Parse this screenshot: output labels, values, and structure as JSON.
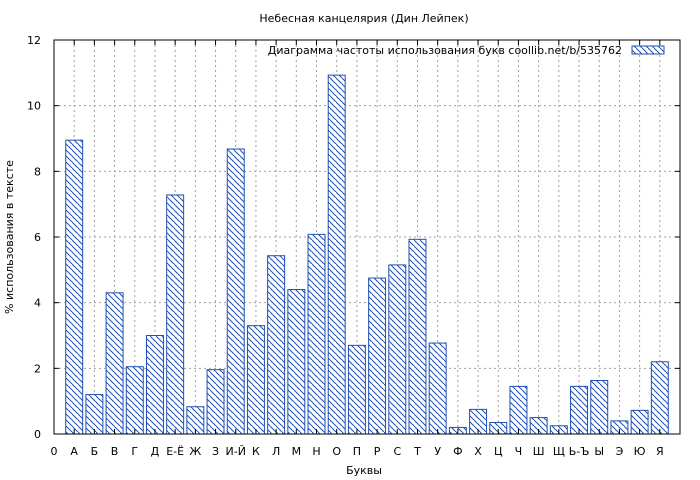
{
  "chart_data": {
    "type": "bar",
    "title": "Небесная канцелярия (Дин Лейпек)",
    "xlabel": "Буквы",
    "ylabel": "% использования в тексте",
    "legend": "Диаграмма частоты использования букв  coollib.net/b/535762",
    "legend_position": "top-right",
    "grid": true,
    "ylim": [
      0,
      12
    ],
    "yticks": [
      "0",
      "2",
      "4",
      "6",
      "8",
      "10",
      "12"
    ],
    "categories": [
      "0",
      "А",
      "Б",
      "В",
      "Г",
      "Д",
      "Е-Ё",
      "Ж",
      "З",
      "И-Й",
      "К",
      "Л",
      "М",
      "Н",
      "О",
      "П",
      "Р",
      "С",
      "Т",
      "У",
      "Ф",
      "Х",
      "Ц",
      "Ч",
      "Ш",
      "Щ",
      "Ь-Ъ",
      "Ы",
      "Э",
      "Ю",
      "Я"
    ],
    "values": [
      null,
      8.95,
      1.2,
      4.3,
      2.05,
      3.0,
      7.28,
      0.83,
      1.96,
      8.68,
      3.3,
      5.43,
      4.4,
      6.08,
      10.93,
      2.7,
      4.75,
      5.15,
      5.93,
      2.77,
      0.2,
      0.75,
      0.35,
      1.45,
      0.5,
      0.25,
      1.45,
      1.63,
      0.4,
      0.72,
      2.2
    ],
    "bar_color": "#2050b0"
  }
}
